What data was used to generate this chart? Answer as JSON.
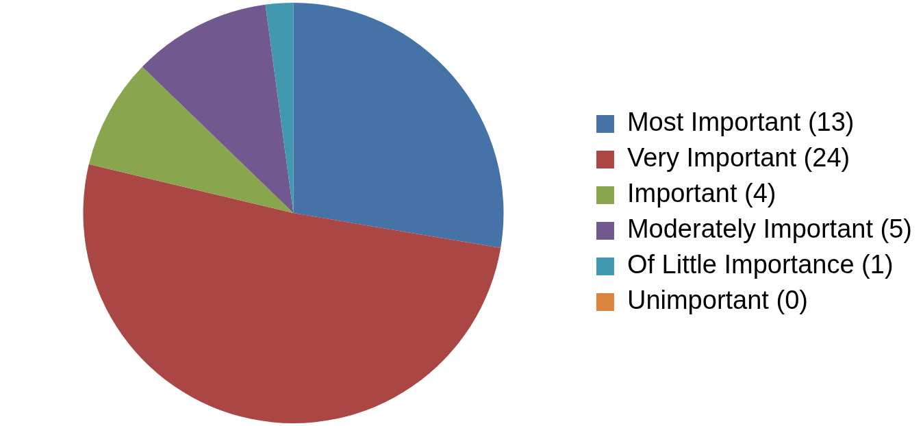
{
  "chart_data": {
    "type": "pie",
    "categories": [
      "Most Important (13)",
      "Very Important (24)",
      "Important (4)",
      "Moderately Important (5)",
      "Of Little Importance (1)",
      "Unimportant (0)"
    ],
    "values": [
      13,
      24,
      4,
      5,
      1,
      0
    ],
    "colors": [
      "#4572a7",
      "#aa4643",
      "#89a54e",
      "#71588f",
      "#4198af",
      "#db843d"
    ],
    "legend": "right"
  }
}
